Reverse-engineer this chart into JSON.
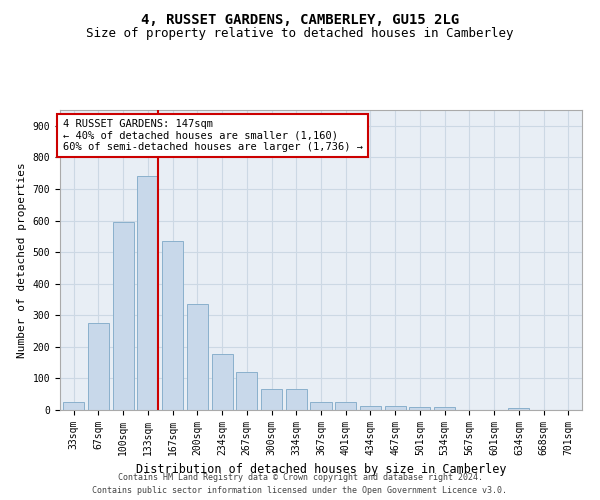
{
  "title": "4, RUSSET GARDENS, CAMBERLEY, GU15 2LG",
  "subtitle": "Size of property relative to detached houses in Camberley",
  "xlabel": "Distribution of detached houses by size in Camberley",
  "ylabel": "Number of detached properties",
  "categories": [
    "33sqm",
    "67sqm",
    "100sqm",
    "133sqm",
    "167sqm",
    "200sqm",
    "234sqm",
    "267sqm",
    "300sqm",
    "334sqm",
    "367sqm",
    "401sqm",
    "434sqm",
    "467sqm",
    "501sqm",
    "534sqm",
    "567sqm",
    "601sqm",
    "634sqm",
    "668sqm",
    "701sqm"
  ],
  "values": [
    25,
    275,
    595,
    740,
    535,
    335,
    178,
    120,
    65,
    65,
    25,
    25,
    12,
    12,
    8,
    8,
    0,
    0,
    5,
    0,
    0
  ],
  "bar_color": "#c8d8ea",
  "bar_edge_color": "#8ab0cc",
  "grid_color": "#ccd8e4",
  "background_color": "#e8eef5",
  "vline_color": "#cc0000",
  "vline_xindex": 3,
  "annotation_line1": "4 RUSSET GARDENS: 147sqm",
  "annotation_line2": "← 40% of detached houses are smaller (1,160)",
  "annotation_line3": "60% of semi-detached houses are larger (1,736) →",
  "annotation_box_color": "#ffffff",
  "annotation_box_edge": "#cc0000",
  "ylim": [
    0,
    950
  ],
  "yticks": [
    0,
    100,
    200,
    300,
    400,
    500,
    600,
    700,
    800,
    900
  ],
  "footer1": "Contains HM Land Registry data © Crown copyright and database right 2024.",
  "footer2": "Contains public sector information licensed under the Open Government Licence v3.0.",
  "title_fontsize": 10,
  "subtitle_fontsize": 9,
  "tick_fontsize": 7,
  "ylabel_fontsize": 8,
  "xlabel_fontsize": 8.5,
  "footer_fontsize": 6,
  "annotation_fontsize": 7.5
}
